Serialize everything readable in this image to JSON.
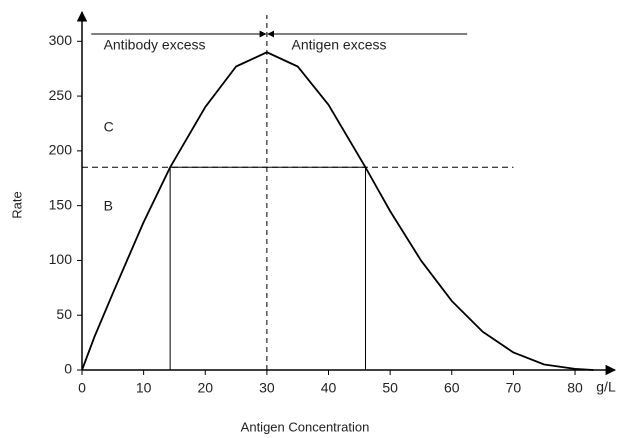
{
  "chart_data": {
    "type": "line",
    "x_label": "Antigen Concentration",
    "x_unit": "g/L",
    "y_label": "Rate",
    "x": [
      0,
      2,
      5,
      10,
      14.3,
      20,
      25,
      30,
      35,
      40,
      46,
      50,
      55,
      60,
      65,
      70,
      75,
      80,
      83
    ],
    "series": [
      {
        "name": "Rate",
        "color": "#000000",
        "values": [
          0,
          30,
          70,
          135,
          185,
          240,
          277,
          290,
          277,
          242,
          185,
          145,
          100,
          63,
          35,
          16,
          5,
          1,
          0
        ]
      }
    ],
    "xlim": [
      0,
      86
    ],
    "ylim": [
      0,
      324
    ],
    "xticks": [
      0,
      10,
      20,
      30,
      40,
      50,
      60,
      70,
      80
    ],
    "yticks": [
      0,
      50,
      100,
      150,
      200,
      250,
      300
    ],
    "reference": {
      "level": 185,
      "x_low": 14.3,
      "x_high": 46,
      "equivalence_x": 30
    },
    "annotations": {
      "left_zone": "Antibody excess",
      "right_zone": "Antigen excess",
      "upper_region": "C",
      "lower_region": "B"
    }
  }
}
